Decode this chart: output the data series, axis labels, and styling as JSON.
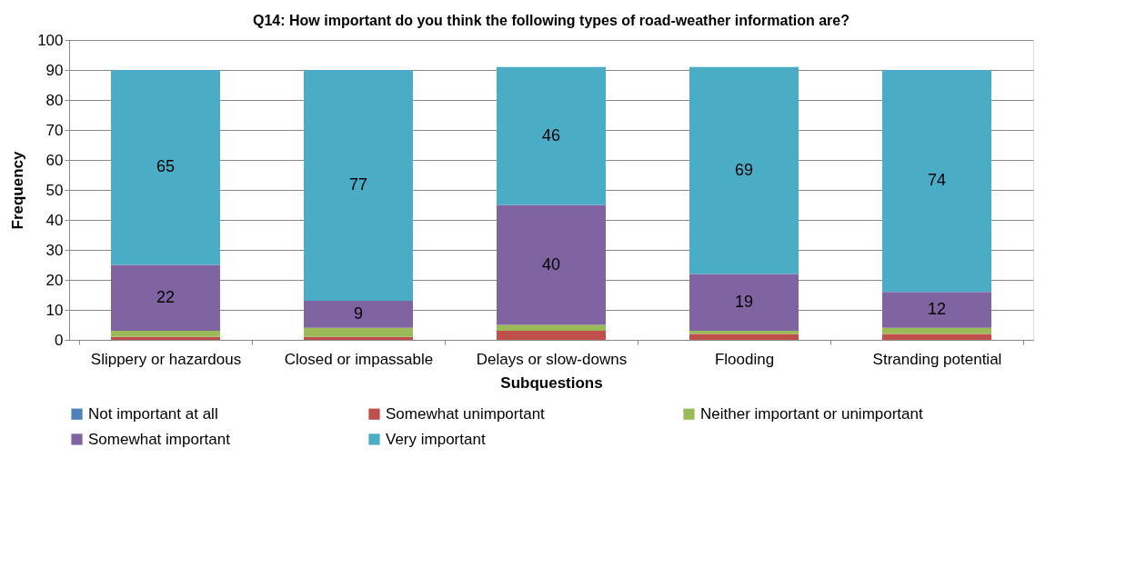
{
  "chart_data": {
    "type": "bar",
    "stacked": true,
    "title": "Q14: How important do you think the following types of road-weather information are?",
    "xlabel": "Subquestions",
    "ylabel": "Frequency",
    "categories": [
      "Slippery or hazardous",
      "Closed or impassable",
      "Delays or slow-downs",
      "Flooding",
      "Stranding potential"
    ],
    "series": [
      {
        "name": "Not important  at all",
        "color": "#4f81bd",
        "values": [
          0,
          0,
          0,
          0,
          0
        ]
      },
      {
        "name": "Somewhat unimportant",
        "color": "#c0504d",
        "values": [
          1,
          1,
          3,
          2,
          2
        ]
      },
      {
        "name": "Neither important or unimportant",
        "color": "#9bbb59",
        "values": [
          2,
          3,
          2,
          1,
          2
        ]
      },
      {
        "name": "Somewhat important",
        "color": "#8064a2",
        "values": [
          22,
          9,
          40,
          19,
          12
        ],
        "value_labels": [
          "22",
          "9",
          "40",
          "19",
          "12"
        ]
      },
      {
        "name": "Very important",
        "color": "#4bacc6",
        "values": [
          65,
          77,
          46,
          69,
          74
        ],
        "value_labels": [
          "65",
          "77",
          "46",
          "69",
          "74"
        ]
      }
    ],
    "ylim": [
      0,
      100
    ],
    "yticks": [
      0,
      10,
      20,
      30,
      40,
      50,
      60,
      70,
      80,
      90,
      100
    ],
    "grid": "y",
    "legend": "bottom"
  }
}
